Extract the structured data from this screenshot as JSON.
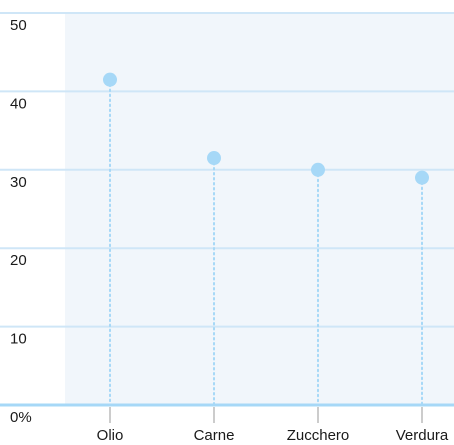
{
  "chart_data": {
    "type": "scatter",
    "style": "lollipop",
    "categories": [
      "Olio",
      "Carne",
      "Zucchero",
      "Verdura"
    ],
    "values": [
      41.5,
      31.5,
      30,
      29
    ],
    "ylim": [
      0,
      50
    ],
    "yticks": [
      0,
      10,
      20,
      30,
      40,
      50
    ],
    "ytick_labels": [
      "0%",
      "10",
      "20",
      "30",
      "40",
      "50"
    ],
    "grid": true,
    "colors": {
      "point": "#a6d8f7",
      "stem": "#a6d8f7",
      "plot_background": "#f1f6fb",
      "gridline": "#cfe6f7",
      "axis": "#a6d8f7",
      "category_tick": "#cccccc",
      "text": "#1a1a1a"
    }
  }
}
